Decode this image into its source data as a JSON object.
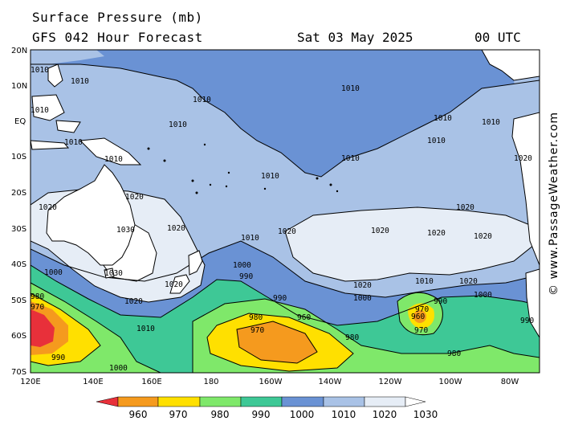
{
  "title": "Surface Pressure (mb)",
  "subtitle": "GFS 042 Hour Forecast",
  "valid_time": "Sat 03 May 2025",
  "utc": "00 UTC",
  "credit": "© www.PassageWeather.com",
  "lat_labels": [
    "20N",
    "10N",
    "EQ",
    "10S",
    "20S",
    "30S",
    "40S",
    "50S",
    "60S",
    "70S"
  ],
  "lon_labels": [
    "120E",
    "140E",
    "160E",
    "180",
    "160W",
    "140W",
    "120W",
    "100W",
    "80W"
  ],
  "colorbar": {
    "levels": [
      "960",
      "970",
      "980",
      "990",
      "1000",
      "1010",
      "1020",
      "1030"
    ],
    "colors": [
      "#e8303a",
      "#f59a1e",
      "#ffe000",
      "#7fe86a",
      "#3ec896",
      "#6a92d4",
      "#a9c2e6",
      "#e6edf6",
      "#ffffff"
    ]
  },
  "colors": {
    "land": "#ffffff",
    "coast": "#000000",
    "band_1000_1010": "#6a92d4",
    "band_1010_1020": "#a9c2e6",
    "band_1020_1030": "#e6edf6",
    "band_990_1000": "#3ec896",
    "band_980_990": "#7fe86a",
    "band_970_980": "#ffe000",
    "band_960_970": "#f59a1e",
    "band_lt_960": "#e8303a"
  },
  "isobar_labels": {
    "l1010": "1010",
    "l1020": "1020",
    "l1030": "1030",
    "l1000": "1000",
    "l990": "990",
    "l980": "980",
    "l970": "970",
    "l960": "960"
  }
}
